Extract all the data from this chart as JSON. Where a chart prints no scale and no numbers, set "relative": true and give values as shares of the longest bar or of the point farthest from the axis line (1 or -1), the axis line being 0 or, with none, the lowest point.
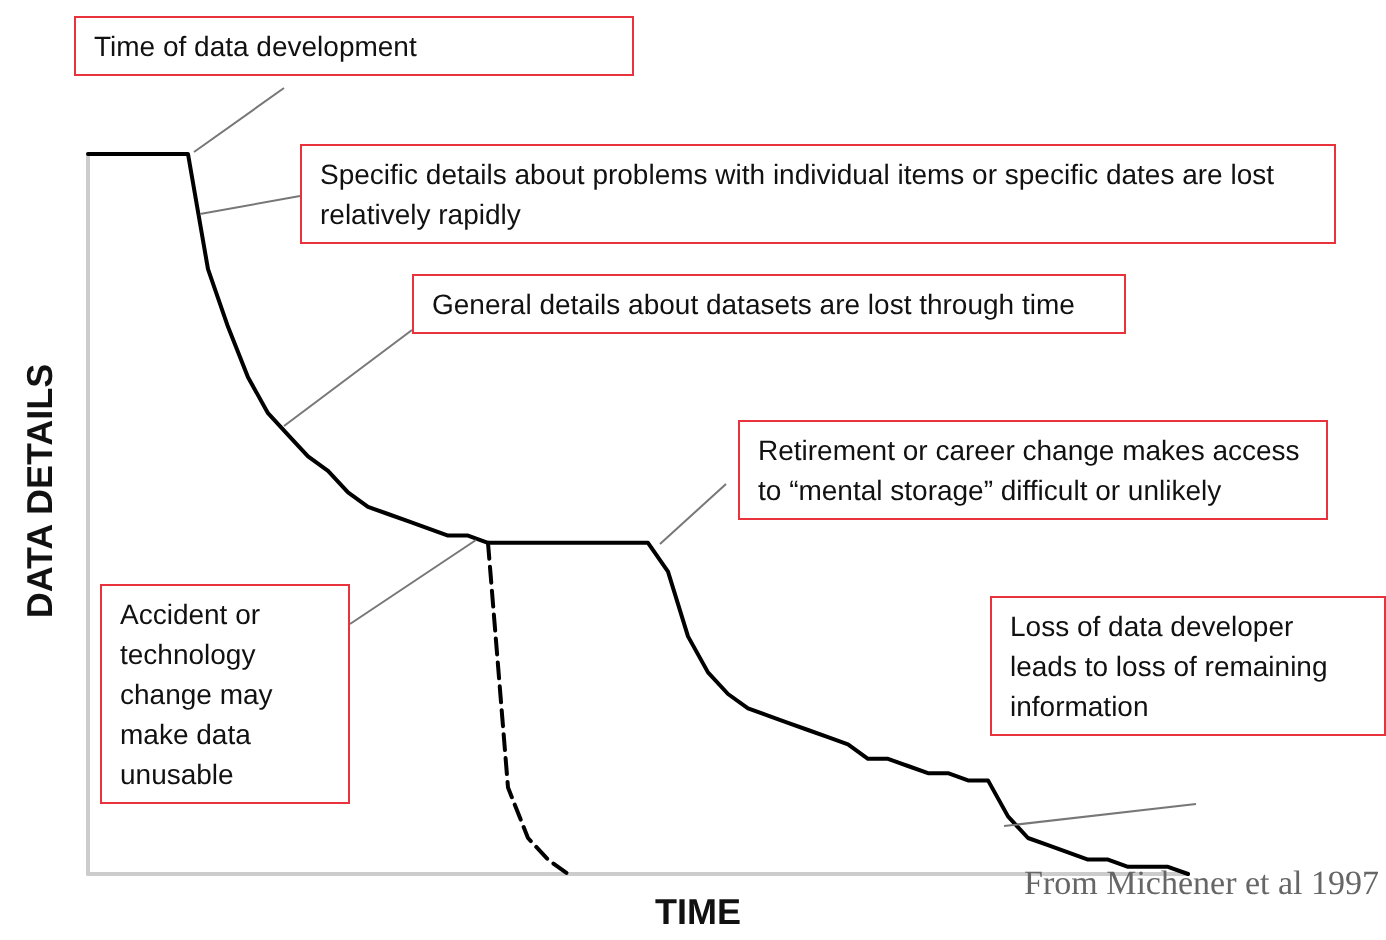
{
  "chart_data": {
    "type": "line",
    "relative": true,
    "marker": "none",
    "xlabel": "TIME",
    "ylabel": "DATA DETAILS",
    "categories": [
      null,
      null,
      null,
      null,
      null,
      null,
      null,
      null,
      null,
      null,
      null,
      null,
      null,
      null,
      null,
      null,
      null,
      null,
      null,
      null,
      null,
      null,
      null,
      null,
      null,
      null,
      null,
      null,
      null,
      null,
      null,
      null,
      null,
      null,
      null,
      null,
      null,
      null,
      null,
      null,
      null,
      null,
      null,
      null,
      null,
      null,
      null,
      null,
      null,
      null,
      null,
      null,
      null,
      null,
      null,
      null
    ],
    "series": [
      {
        "color": "#000000",
        "line_style": "solid",
        "values": [
          1.0,
          1.0,
          1.0,
          1.0,
          1.0,
          1.0,
          0.84,
          0.76,
          0.69,
          0.64,
          0.61,
          0.58,
          0.56,
          0.53,
          0.51,
          0.5,
          0.49,
          0.48,
          0.47,
          0.47,
          0.46,
          0.46,
          0.46,
          0.46,
          0.46,
          0.46,
          0.46,
          0.46,
          0.46,
          0.42,
          0.33,
          0.28,
          0.25,
          0.23,
          0.22,
          0.21,
          0.2,
          0.19,
          0.18,
          0.16,
          0.16,
          0.15,
          0.14,
          0.14,
          0.13,
          0.13,
          0.08,
          0.05,
          0.04,
          0.03,
          0.02,
          0.02,
          0.01,
          0.01,
          0.01,
          0
        ]
      },
      {
        "color": "#000000",
        "line_style": "dashed",
        "values": [
          null,
          null,
          null,
          null,
          null,
          null,
          null,
          null,
          null,
          null,
          null,
          null,
          null,
          null,
          null,
          null,
          null,
          null,
          null,
          null,
          0.46,
          0.12,
          0.05,
          0.02,
          0,
          null,
          null,
          null,
          null,
          null,
          null,
          null,
          null,
          null,
          null,
          null,
          null,
          null,
          null,
          null,
          null,
          null,
          null,
          null,
          null,
          null,
          null,
          null,
          null,
          null,
          null,
          null,
          null,
          null,
          null,
          null
        ]
      }
    ],
    "annotations": [
      "Time of data development",
      "Specific details about problems with individual items or specific dates are lost relatively rapidly",
      "General details about datasets are lost through time",
      "Retirement or career change makes access to “mental storage” difficult or unlikely",
      "Accident or technology change may make data unusable",
      "Loss of data developer leads to loss of remaining information",
      "From Michener et al 1997"
    ]
  }
}
